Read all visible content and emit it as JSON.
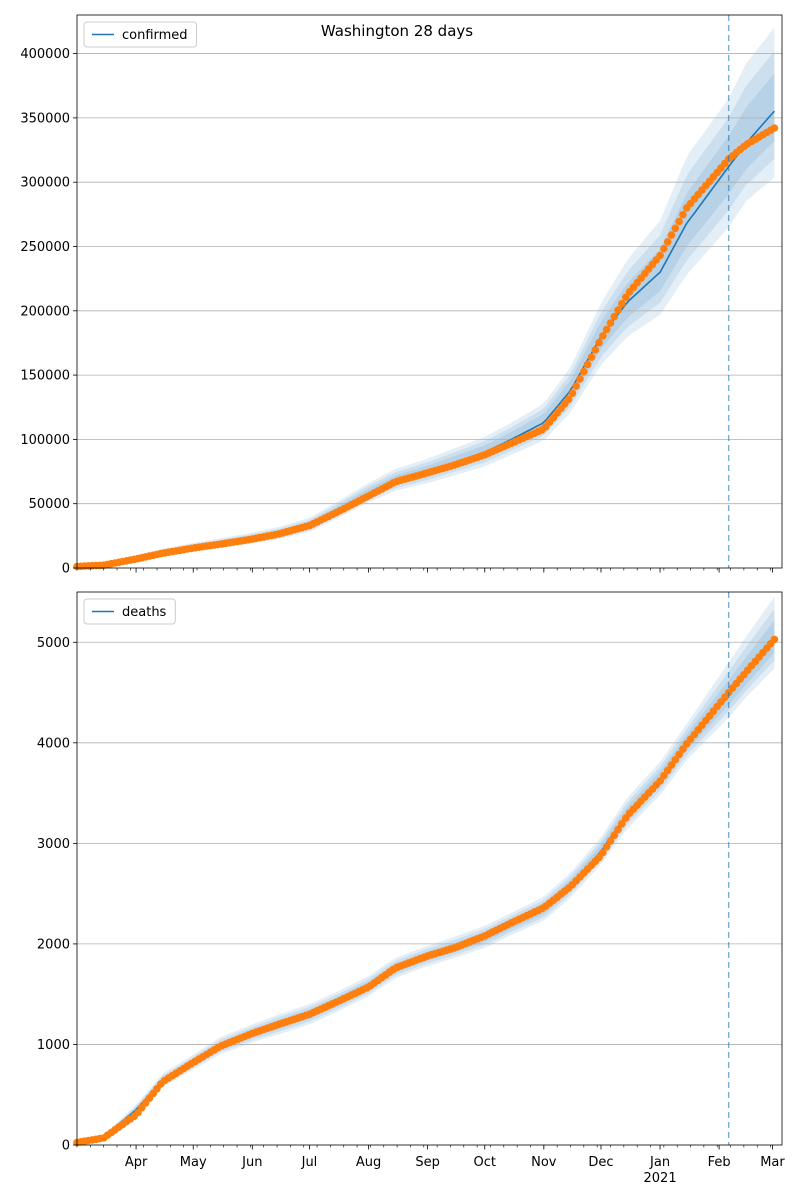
{
  "chart_data": [
    {
      "type": "line",
      "title": "Washington 28 days",
      "xlabel": "",
      "ylabel": "",
      "ylim": [
        0,
        430000
      ],
      "yticks": [
        0,
        50000,
        100000,
        150000,
        200000,
        250000,
        300000,
        350000,
        400000
      ],
      "grid": "horizontal",
      "legend": "top-left",
      "forecast_start": "2021-02-06",
      "series": [
        {
          "name": "confirmed",
          "kind": "model",
          "color": "#1f77b4",
          "x": [
            "2020-03-01",
            "2020-03-15",
            "2020-04-01",
            "2020-04-15",
            "2020-05-01",
            "2020-05-15",
            "2020-06-01",
            "2020-06-15",
            "2020-07-01",
            "2020-07-15",
            "2020-08-01",
            "2020-08-15",
            "2020-09-01",
            "2020-09-15",
            "2020-10-01",
            "2020-10-15",
            "2020-11-01",
            "2020-11-15",
            "2020-12-01",
            "2020-12-15",
            "2021-01-01",
            "2021-01-15",
            "2021-02-06",
            "2021-02-15",
            "2021-03-03"
          ],
          "y": [
            1500,
            2500,
            8000,
            12000,
            16000,
            19000,
            23000,
            27000,
            33000,
            44000,
            58000,
            68000,
            75000,
            82000,
            90000,
            100000,
            113000,
            138000,
            180000,
            207000,
            230000,
            268000,
            312000,
            330000,
            357000
          ],
          "band": {
            "upper": [
              2000,
              3500,
              10000,
              15000,
              19500,
              23000,
              27500,
              32000,
              39000,
              51000,
              66000,
              77000,
              85000,
              93000,
              102000,
              113000,
              128000,
              156000,
              206000,
              240000,
              270000,
              320000,
              365000,
              392000,
              422000
            ],
            "lower": [
              1000,
              1800,
              6500,
              9800,
              13000,
              15500,
              19000,
              22500,
              28000,
              38000,
              51000,
              60000,
              66000,
              72000,
              79000,
              88000,
              99000,
              121000,
              158000,
              180000,
              197000,
              228000,
              265000,
              285000,
              305000
            ]
          }
        },
        {
          "name": "",
          "kind": "observed",
          "color": "#ff7f0e",
          "x": [
            "2020-03-01",
            "2020-03-15",
            "2020-04-01",
            "2020-04-15",
            "2020-05-01",
            "2020-05-15",
            "2020-06-01",
            "2020-06-15",
            "2020-07-01",
            "2020-07-15",
            "2020-08-01",
            "2020-08-15",
            "2020-09-01",
            "2020-09-15",
            "2020-10-01",
            "2020-10-15",
            "2020-11-01",
            "2020-11-15",
            "2020-12-01",
            "2020-12-15",
            "2021-01-01",
            "2021-01-15",
            "2021-02-06",
            "2021-02-15",
            "2021-03-03"
          ],
          "y": [
            1200,
            2200,
            7000,
            11500,
            15500,
            18500,
            22500,
            26500,
            33000,
            43000,
            56000,
            67000,
            74000,
            80000,
            88000,
            97000,
            108000,
            133000,
            178000,
            213000,
            243000,
            280000,
            318000,
            329000,
            343000
          ]
        }
      ]
    },
    {
      "type": "line",
      "title": "",
      "xlabel": "",
      "ylabel": "",
      "ylim": [
        0,
        5500
      ],
      "yticks": [
        0,
        1000,
        2000,
        3000,
        4000,
        5000
      ],
      "grid": "horizontal",
      "legend": "top-left",
      "forecast_start": "2021-02-06",
      "xtick_labels": [
        "Apr",
        "May",
        "Jun",
        "Jul",
        "Aug",
        "Sep",
        "Oct",
        "Nov",
        "Dec",
        "Jan",
        "Feb",
        "Mar"
      ],
      "xtick_dates": [
        "2020-04-01",
        "2020-05-01",
        "2020-06-01",
        "2020-07-01",
        "2020-08-01",
        "2020-09-01",
        "2020-10-01",
        "2020-11-01",
        "2020-12-01",
        "2021-01-01",
        "2021-02-01",
        "2021-03-01"
      ],
      "x_year_label": "2021",
      "series": [
        {
          "name": "deaths",
          "kind": "model",
          "color": "#1f77b4",
          "x": [
            "2020-03-01",
            "2020-03-15",
            "2020-04-01",
            "2020-04-15",
            "2020-05-01",
            "2020-05-15",
            "2020-06-01",
            "2020-06-15",
            "2020-07-01",
            "2020-07-15",
            "2020-08-01",
            "2020-08-15",
            "2020-09-01",
            "2020-09-15",
            "2020-10-01",
            "2020-10-15",
            "2020-11-01",
            "2020-11-15",
            "2020-12-01",
            "2020-12-15",
            "2021-01-01",
            "2021-01-15",
            "2021-02-06",
            "2021-02-15",
            "2021-03-03"
          ],
          "y": [
            30,
            80,
            350,
            640,
            820,
            980,
            1110,
            1200,
            1300,
            1420,
            1580,
            1760,
            1880,
            1960,
            2070,
            2200,
            2350,
            2580,
            2920,
            3300,
            3640,
            4000,
            4480,
            4680,
            5050
          ],
          "band": {
            "upper": [
              40,
              100,
              400,
              710,
              900,
              1070,
              1200,
              1300,
              1400,
              1520,
              1680,
              1860,
              1980,
              2070,
              2180,
              2310,
              2470,
              2710,
              3060,
              3460,
              3810,
              4190,
              4800,
              5050,
              5480
            ],
            "lower": [
              20,
              60,
              300,
              580,
              750,
              900,
              1020,
              1100,
              1200,
              1320,
              1480,
              1660,
              1780,
              1860,
              1960,
              2090,
              2230,
              2460,
              2790,
              3150,
              3480,
              3830,
              4250,
              4450,
              4760
            ]
          }
        },
        {
          "name": "",
          "kind": "observed",
          "color": "#ff7f0e",
          "x": [
            "2020-03-01",
            "2020-03-15",
            "2020-04-01",
            "2020-04-15",
            "2020-05-01",
            "2020-05-15",
            "2020-06-01",
            "2020-06-15",
            "2020-07-01",
            "2020-07-15",
            "2020-08-01",
            "2020-08-15",
            "2020-09-01",
            "2020-09-15",
            "2020-10-01",
            "2020-10-15",
            "2020-11-01",
            "2020-11-15",
            "2020-12-01",
            "2020-12-15",
            "2021-01-01",
            "2021-01-15",
            "2021-02-06",
            "2021-02-15",
            "2021-03-03"
          ],
          "y": [
            25,
            70,
            300,
            630,
            820,
            980,
            1110,
            1200,
            1300,
            1420,
            1570,
            1760,
            1880,
            1960,
            2080,
            2210,
            2360,
            2570,
            2880,
            3280,
            3620,
            3990,
            4500,
            4700,
            5050
          ]
        }
      ]
    }
  ]
}
